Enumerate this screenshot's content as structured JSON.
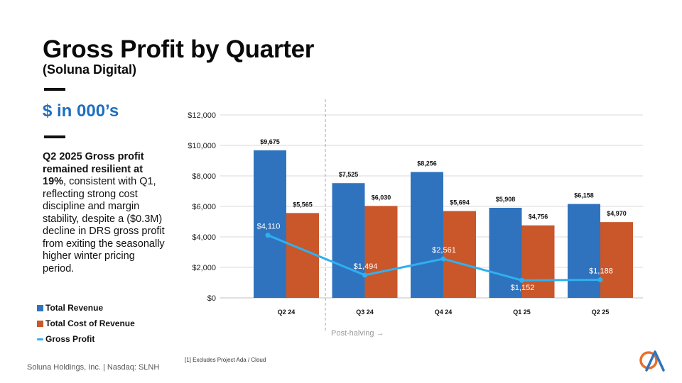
{
  "slide": {
    "title": "Gross Profit by Quarter",
    "subtitle": "(Soluna Digital)",
    "units": "$ in 000’s",
    "desc_bold": "Q2 2025 Gross profit remained resilient at 19%",
    "desc_rest": ", consistent with Q1, reflecting strong cost discipline and margin stability, despite a ($0.3M) decline in DRS gross profit from exiting the seasonally higher winter pricing period.",
    "footer": "Soluna Holdings, Inc. |  Nasdaq: SLNH",
    "footnote": "[1] Excludes Project Ada / Cloud"
  },
  "colors": {
    "revenue": "#2f73be",
    "cost": "#c9572a",
    "profit": "#2fb0f0",
    "units": "#1f6fbf",
    "grid": "#d9d9d9"
  },
  "chart_data": {
    "type": "bar",
    "title": "Gross Profit by Quarter",
    "categories": [
      "Q2 24",
      "Q3 24",
      "Q4 24",
      "Q1 25",
      "Q2 25"
    ],
    "series": [
      {
        "name": "Total Revenue",
        "kind": "bar",
        "values": [
          9675,
          7525,
          8256,
          5908,
          6158
        ],
        "labels": [
          "$9,675",
          "$7,525",
          "$8,256",
          "$5,908",
          "$6,158"
        ]
      },
      {
        "name": "Total Cost of Revenue",
        "kind": "bar",
        "values": [
          5565,
          6030,
          5694,
          4756,
          4970
        ],
        "labels": [
          "$5,565",
          "$6,030",
          "$5,694",
          "$4,756",
          "$4,970"
        ]
      },
      {
        "name": "Gross Profit",
        "kind": "line",
        "values": [
          4110,
          1494,
          2561,
          1152,
          1188
        ],
        "labels": [
          "$4,110",
          "$1,494",
          "$2,561",
          "$1,152",
          "$1,188"
        ]
      }
    ],
    "ylim": [
      0,
      12000
    ],
    "yticks": [
      0,
      2000,
      4000,
      6000,
      8000,
      10000,
      12000
    ],
    "ytick_labels": [
      "$0",
      "$2,000",
      "$4,000",
      "$6,000",
      "$8,000",
      "$10,000",
      "$12,000"
    ],
    "grid": true,
    "annotation": "Post-halving →",
    "legend": [
      "Total Revenue",
      "Total Cost of Revenue",
      "Gross Profit"
    ]
  }
}
